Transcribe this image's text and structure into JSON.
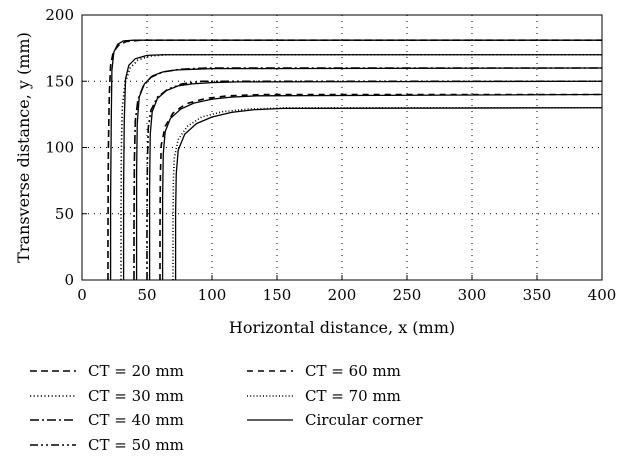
{
  "chart_data": {
    "type": "line",
    "title": "",
    "xlabel": "Horizontal distance, x (mm)",
    "ylabel": "Transverse distance, y (mm)",
    "xlim": [
      0,
      400
    ],
    "ylim": [
      0,
      200
    ],
    "xticks": [
      "0",
      "50",
      "100",
      "150",
      "200",
      "250",
      "300",
      "350",
      "400"
    ],
    "yticks": [
      "0",
      "50",
      "100",
      "150",
      "200"
    ],
    "grid": "dotted",
    "legend_placement": "below",
    "series": [
      {
        "name": "CT = 20 mm",
        "style": "dashed",
        "points": [
          [
            20,
            0
          ],
          [
            20,
            40
          ],
          [
            20.3,
            100
          ],
          [
            21,
            140
          ],
          [
            22,
            162
          ],
          [
            24,
            172
          ],
          [
            28,
            177
          ],
          [
            34,
            180
          ],
          [
            45,
            181
          ],
          [
            60,
            181
          ],
          [
            100,
            181
          ],
          [
            400,
            181
          ]
        ]
      },
      {
        "name": "CT = 30 mm",
        "style": "dotted",
        "points": [
          [
            30,
            0
          ],
          [
            30,
            50
          ],
          [
            30.3,
            100
          ],
          [
            31,
            130
          ],
          [
            33,
            148
          ],
          [
            37,
            160
          ],
          [
            43,
            166
          ],
          [
            52,
            169
          ],
          [
            65,
            170
          ],
          [
            90,
            170
          ],
          [
            400,
            170
          ]
        ]
      },
      {
        "name": "CT = 40 mm",
        "style": "dashdot",
        "points": [
          [
            40,
            0
          ],
          [
            40,
            40
          ],
          [
            40.3,
            90
          ],
          [
            41,
            120
          ],
          [
            43,
            136
          ],
          [
            47,
            146
          ],
          [
            53,
            153
          ],
          [
            62,
            157
          ],
          [
            75,
            159
          ],
          [
            95,
            160
          ],
          [
            400,
            160
          ]
        ]
      },
      {
        "name": "CT = 50 mm",
        "style": "dashdotdot",
        "points": [
          [
            50,
            0
          ],
          [
            50,
            40
          ],
          [
            50.3,
            90
          ],
          [
            51,
            115
          ],
          [
            53,
            128
          ],
          [
            58,
            138
          ],
          [
            66,
            144
          ],
          [
            77,
            148
          ],
          [
            92,
            150
          ],
          [
            120,
            150
          ],
          [
            400,
            150
          ]
        ]
      },
      {
        "name": "CT = 60 mm",
        "style": "longdash",
        "points": [
          [
            60,
            0
          ],
          [
            60,
            40
          ],
          [
            60.3,
            80
          ],
          [
            61,
            102
          ],
          [
            64,
            116
          ],
          [
            70,
            126
          ],
          [
            80,
            133
          ],
          [
            95,
            137
          ],
          [
            112,
            139
          ],
          [
            140,
            140
          ],
          [
            400,
            140
          ]
        ]
      },
      {
        "name": "CT = 70 mm",
        "style": "finedot",
        "points": [
          [
            70,
            0
          ],
          [
            70,
            40
          ],
          [
            70.3,
            75
          ],
          [
            71,
            92
          ],
          [
            74,
            106
          ],
          [
            81,
            116
          ],
          [
            92,
            123
          ],
          [
            108,
            127
          ],
          [
            128,
            129
          ],
          [
            160,
            130
          ],
          [
            400,
            130
          ]
        ]
      },
      {
        "name": "Circular corner",
        "style": "solid",
        "points": [
          [
            22,
            0
          ],
          [
            22,
            60
          ],
          [
            22.5,
            120
          ],
          [
            23,
            158
          ],
          [
            24.5,
            172
          ],
          [
            27.5,
            178
          ],
          [
            32,
            180.5
          ],
          [
            40,
            181
          ],
          [
            400,
            181
          ],
          null,
          [
            32,
            0
          ],
          [
            32,
            70
          ],
          [
            32.5,
            120
          ],
          [
            33.5,
            152
          ],
          [
            36,
            162
          ],
          [
            41,
            167
          ],
          [
            50,
            169.5
          ],
          [
            62,
            170
          ],
          [
            400,
            170
          ],
          null,
          [
            42,
            0
          ],
          [
            42,
            80
          ],
          [
            42.5,
            118
          ],
          [
            44,
            138
          ],
          [
            48,
            148
          ],
          [
            54,
            154
          ],
          [
            62,
            157
          ],
          [
            72,
            158.5
          ],
          [
            85,
            159
          ],
          [
            100,
            159.5
          ],
          [
            400,
            160
          ],
          null,
          [
            52,
            0
          ],
          [
            52,
            70
          ],
          [
            52.5,
            110
          ],
          [
            54,
            127
          ],
          [
            58,
            137
          ],
          [
            65,
            143
          ],
          [
            74,
            146.5
          ],
          [
            85,
            148
          ],
          [
            100,
            149
          ],
          [
            120,
            149.5
          ],
          [
            400,
            150
          ],
          null,
          [
            62,
            0
          ],
          [
            62,
            60
          ],
          [
            62.5,
            95
          ],
          [
            64,
            112
          ],
          [
            68,
            122
          ],
          [
            76,
            129
          ],
          [
            86,
            133.5
          ],
          [
            100,
            136.5
          ],
          [
            115,
            138
          ],
          [
            135,
            139
          ],
          [
            400,
            140
          ],
          null,
          [
            72,
            0
          ],
          [
            72,
            50
          ],
          [
            72.5,
            80
          ],
          [
            74,
            98
          ],
          [
            79,
            110
          ],
          [
            88,
            118
          ],
          [
            100,
            123
          ],
          [
            115,
            126.5
          ],
          [
            132,
            128.5
          ],
          [
            155,
            129.5
          ],
          [
            400,
            130
          ]
        ]
      }
    ]
  }
}
